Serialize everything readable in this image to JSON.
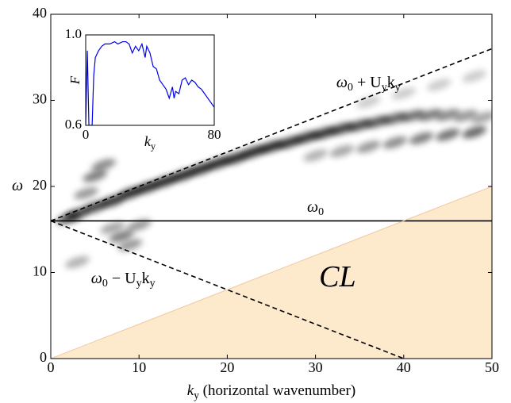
{
  "chart_data": [
    {
      "type": "line",
      "xlabel": [
        "k",
        "y",
        " (horizontal wavenumber)"
      ],
      "ylabel": [
        "ω"
      ],
      "xlim": [
        0,
        50
      ],
      "xticks": [
        0,
        10,
        20,
        30,
        40,
        50
      ],
      "ylim": [
        0,
        40
      ],
      "yticks": [
        0,
        10,
        20,
        30,
        40
      ],
      "series": [
        {
          "x": [
            0,
            50
          ],
          "values": [
            16,
            16
          ],
          "color": "#000000",
          "dashed": false
        },
        {
          "x": [
            0,
            50
          ],
          "values": [
            16,
            36
          ],
          "color": "#000000",
          "dashed": true
        },
        {
          "x": [
            0,
            40
          ],
          "values": [
            16,
            0
          ],
          "color": "#000000",
          "dashed": true
        },
        {
          "x": [
            0,
            50
          ],
          "values": [
            0,
            20
          ],
          "color": "#f2c7a0",
          "fill": "#fde9cc",
          "dashed": false
        }
      ],
      "heatmap": {
        "x": [
          2,
          3,
          5,
          7,
          9,
          11,
          13,
          15,
          17,
          19,
          21,
          23,
          25,
          27,
          29,
          31,
          33,
          35,
          37,
          39,
          41,
          43,
          45,
          47,
          49,
          30,
          33,
          36,
          39,
          42,
          45,
          48,
          36,
          40,
          44,
          48,
          5,
          6,
          4,
          8,
          9,
          3,
          7,
          10
        ],
        "y": [
          16.3,
          16.8,
          17.6,
          18.3,
          19.2,
          19.9,
          20.6,
          21.3,
          22,
          22.7,
          23.3,
          24,
          24.6,
          25.1,
          25.7,
          26.2,
          26.7,
          27.1,
          27.5,
          27.9,
          28.2,
          28.3,
          28.3,
          28.2,
          28,
          23.6,
          24.1,
          24.6,
          25.1,
          25.6,
          26,
          26.3,
          29.8,
          30.8,
          31.8,
          32.8,
          21.2,
          22.5,
          19.2,
          14.2,
          13.2,
          11.2,
          15.2,
          15.5
        ],
        "values": [
          0.6,
          0.7,
          0.75,
          0.8,
          0.85,
          0.85,
          0.85,
          0.85,
          0.85,
          0.85,
          0.85,
          0.85,
          0.85,
          0.8,
          0.8,
          0.8,
          0.75,
          0.7,
          0.65,
          0.6,
          0.55,
          0.5,
          0.45,
          0.4,
          0.35,
          0.3,
          0.35,
          0.4,
          0.45,
          0.5,
          0.55,
          0.6,
          0.2,
          0.2,
          0.2,
          0.2,
          0.5,
          0.45,
          0.4,
          0.5,
          0.4,
          0.3,
          0.35,
          0.4
        ],
        "color": "#000000"
      },
      "annotations": [
        [
          "ω",
          "0",
          " + U",
          "y",
          "k",
          "y"
        ],
        [
          "ω",
          "0"
        ],
        [
          "ω",
          "0",
          " − U",
          "y",
          "k",
          "y"
        ],
        [
          "CL"
        ]
      ]
    },
    {
      "type": "line",
      "xlabel": [
        "k",
        "y"
      ],
      "ylabel": [
        "F"
      ],
      "xlim": [
        0,
        80
      ],
      "xticks": [
        0,
        80
      ],
      "ylim": [
        0.6,
        1.0
      ],
      "yticks": [
        0.6,
        {
          "value": 1,
          "label": "1.0"
        }
      ],
      "series": [
        {
          "color": "#0000ee",
          "x": [
            0,
            1,
            2,
            3,
            4,
            5,
            6,
            8,
            10,
            12,
            15,
            18,
            20,
            23,
            25,
            27,
            29,
            31,
            33,
            35,
            37,
            38,
            40,
            42,
            44,
            46,
            48,
            50,
            52,
            54,
            55,
            56,
            58,
            60,
            62,
            64,
            66,
            68,
            70,
            72,
            74,
            76,
            78,
            80
          ],
          "values": [
            0.6,
            0.93,
            0.6,
            0.6,
            0.6,
            0.82,
            0.9,
            0.93,
            0.95,
            0.96,
            0.96,
            0.97,
            0.96,
            0.97,
            0.97,
            0.96,
            0.92,
            0.95,
            0.93,
            0.96,
            0.9,
            0.95,
            0.92,
            0.86,
            0.85,
            0.8,
            0.78,
            0.76,
            0.72,
            0.77,
            0.72,
            0.75,
            0.74,
            0.8,
            0.81,
            0.78,
            0.8,
            0.79,
            0.77,
            0.76,
            0.74,
            0.72,
            0.7,
            0.68
          ]
        }
      ]
    }
  ]
}
